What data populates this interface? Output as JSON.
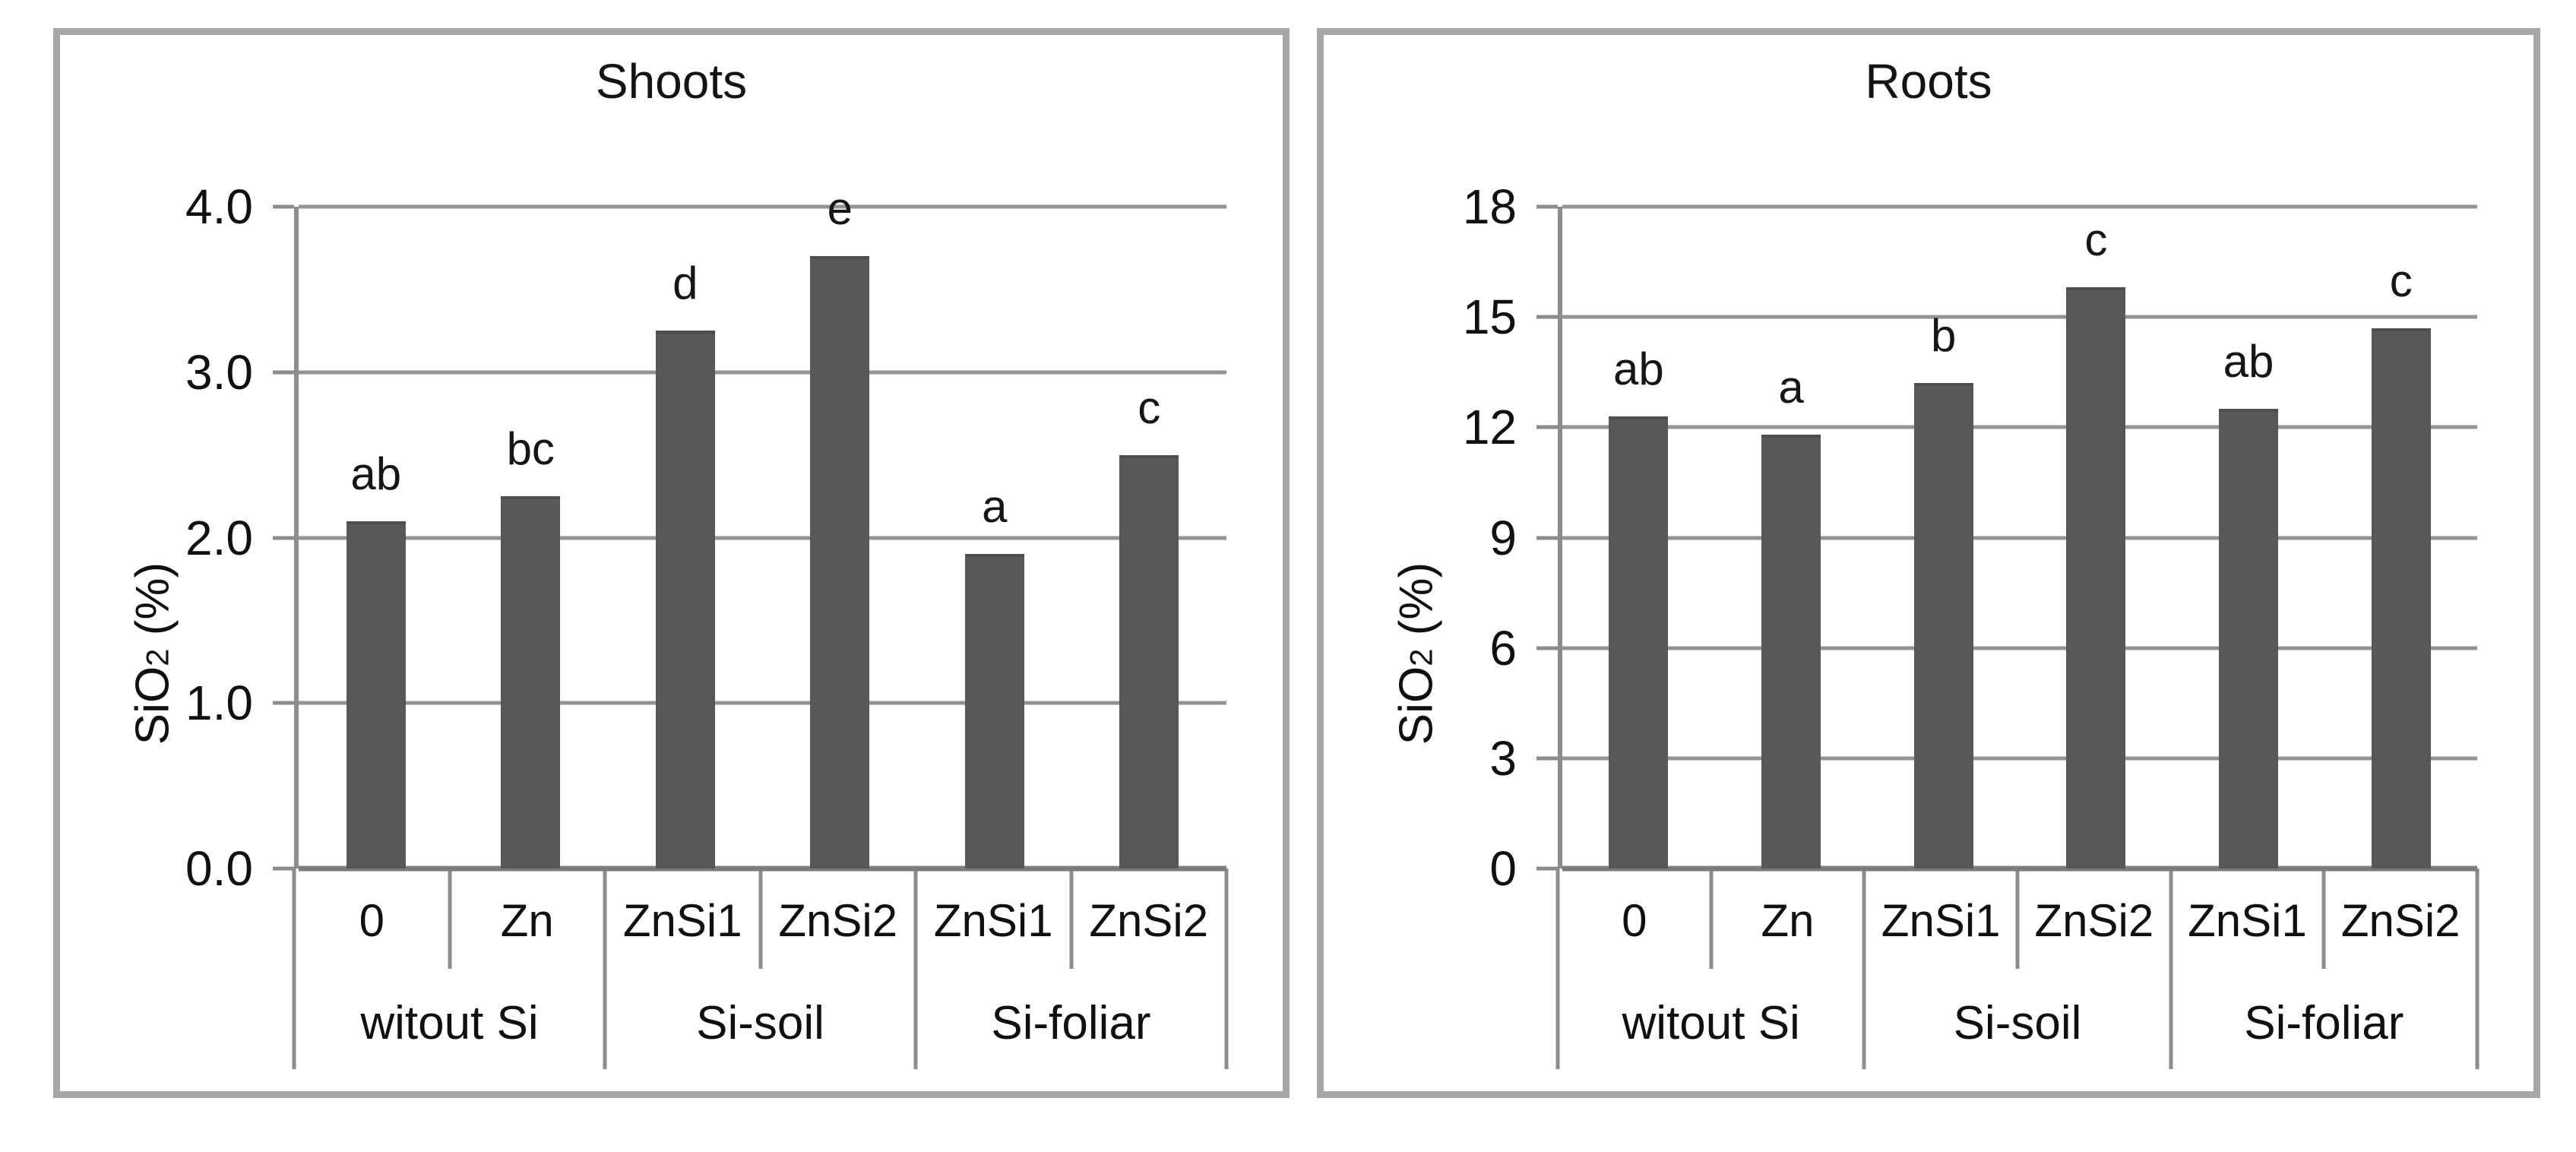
{
  "page": {
    "background": "#ffffff"
  },
  "colors": {
    "bar": "#585858",
    "gridline": "#939393",
    "baseline": "#7c7c7c",
    "panel_border": "#a7a7a7",
    "table_line": "#8c8c8c",
    "text": "#101010"
  },
  "chart_data": [
    {
      "type": "bar",
      "title": "Shoots",
      "ylabel": "SiO2 (%)",
      "ylabel_parts": {
        "main": "SiO",
        "sub": "2",
        "rest": " (%)"
      },
      "ylim": [
        0,
        4
      ],
      "yticks": [
        "4.0",
        "3.0",
        "2.0",
        "1.0",
        "0.0"
      ],
      "grid": "on",
      "legend": "none",
      "categories": [
        "0",
        "Zn",
        "ZnSi1",
        "ZnSi2",
        "ZnSi1",
        "ZnSi2"
      ],
      "groups": [
        {
          "label": "witout Si",
          "span": 2
        },
        {
          "label": "Si-soil",
          "span": 2
        },
        {
          "label": "Si-foliar",
          "span": 2
        }
      ],
      "values": [
        2.1,
        2.25,
        3.25,
        3.7,
        1.9,
        2.5
      ],
      "sig_letters": [
        "ab",
        "bc",
        "d",
        "e",
        "a",
        "c"
      ]
    },
    {
      "type": "bar",
      "title": "Roots",
      "ylabel": "SiO2 (%)",
      "ylabel_parts": {
        "main": "SiO",
        "sub": "2",
        "rest": " (%)"
      },
      "ylim": [
        0,
        18
      ],
      "yticks": [
        "18",
        "15",
        "12",
        "9",
        "6",
        "3",
        "0"
      ],
      "grid": "on",
      "legend": "none",
      "categories": [
        "0",
        "Zn",
        "ZnSi1",
        "ZnSi2",
        "ZnSi1",
        "ZnSi2"
      ],
      "groups": [
        {
          "label": "witout Si",
          "span": 2
        },
        {
          "label": "Si-soil",
          "span": 2
        },
        {
          "label": "Si-foliar",
          "span": 2
        }
      ],
      "values": [
        12.3,
        11.8,
        13.2,
        15.8,
        12.5,
        14.7
      ],
      "sig_letters": [
        "ab",
        "a",
        "b",
        "c",
        "ab",
        "c"
      ]
    }
  ]
}
